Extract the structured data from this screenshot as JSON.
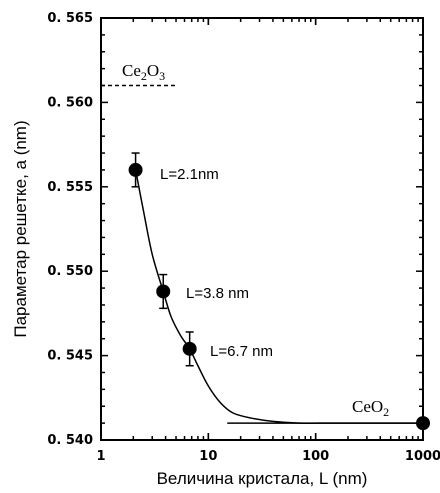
{
  "chart_data": {
    "type": "scatter",
    "xlabel": "Величина кристала, L (nm)",
    "ylabel": "Параметар решетке, a (nm)",
    "xscale": "log",
    "xlim": [
      1,
      1000
    ],
    "ylim": [
      0.54,
      0.565
    ],
    "xticks": [
      "1",
      "10",
      "100",
      "1000"
    ],
    "yticks": [
      "0. 540",
      "0. 545",
      "0. 550",
      "0. 555",
      "0. 560",
      "0. 565"
    ],
    "points": [
      {
        "x": 2.1,
        "y": 0.556,
        "err": 0.001,
        "label": "L=2.1nm"
      },
      {
        "x": 3.8,
        "y": 0.5488,
        "err": 0.001,
        "label": "L=3.8 nm"
      },
      {
        "x": 6.7,
        "y": 0.5454,
        "err": 0.001,
        "label": "L=6.7 nm"
      },
      {
        "x": 1000,
        "y": 0.541,
        "err": 0,
        "label": ""
      }
    ],
    "fit_curve": {
      "x": [
        2.1,
        2.5,
        3,
        3.8,
        4.5,
        5.5,
        6.7,
        8,
        10,
        13,
        17,
        25,
        40,
        70,
        150,
        400,
        1000
      ],
      "y": [
        0.556,
        0.5535,
        0.551,
        0.5488,
        0.5473,
        0.5462,
        0.5454,
        0.5444,
        0.5432,
        0.5422,
        0.5416,
        0.5413,
        0.5411,
        0.541,
        0.541,
        0.541,
        0.541
      ]
    },
    "references": [
      {
        "label": "Ce2O3",
        "label_base": "Ce",
        "label_sub1": "2",
        "label_mid": "O",
        "label_sub2": "3",
        "y": 0.561,
        "x_range": [
          1,
          5
        ],
        "style": "dashed"
      },
      {
        "label": "CeO2",
        "label_base": "CeO",
        "label_sub1": "2",
        "y": 0.541,
        "x_range": [
          15,
          1000
        ],
        "style": "solid"
      }
    ]
  }
}
